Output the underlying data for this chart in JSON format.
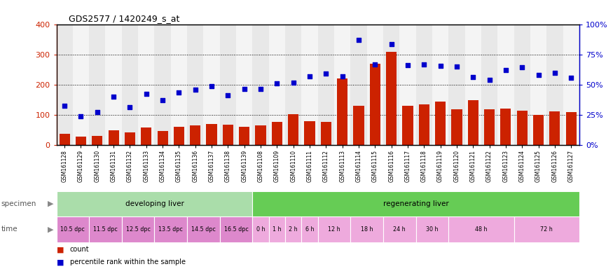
{
  "title": "GDS2577 / 1420249_s_at",
  "samples": [
    "GSM161128",
    "GSM161129",
    "GSM161130",
    "GSM161131",
    "GSM161132",
    "GSM161133",
    "GSM161134",
    "GSM161135",
    "GSM161136",
    "GSM161137",
    "GSM161138",
    "GSM161139",
    "GSM161108",
    "GSM161109",
    "GSM161110",
    "GSM161111",
    "GSM161112",
    "GSM161113",
    "GSM161114",
    "GSM161115",
    "GSM161116",
    "GSM161117",
    "GSM161118",
    "GSM161119",
    "GSM161120",
    "GSM161121",
    "GSM161122",
    "GSM161123",
    "GSM161124",
    "GSM161125",
    "GSM161126",
    "GSM161127"
  ],
  "counts": [
    38,
    28,
    32,
    50,
    42,
    58,
    48,
    62,
    65,
    70,
    68,
    60,
    65,
    77,
    102,
    80,
    78,
    220,
    130,
    270,
    308,
    130,
    135,
    145,
    120,
    148,
    118,
    122,
    115,
    100,
    112,
    110
  ],
  "percentiles_on_left_scale": [
    130,
    95,
    110,
    160,
    125,
    170,
    150,
    175,
    183,
    195,
    165,
    185,
    185,
    205,
    208,
    228,
    237,
    228,
    348,
    268,
    335,
    265,
    268,
    262,
    260,
    225,
    215,
    248,
    258,
    232,
    240,
    222
  ],
  "bar_color": "#cc2200",
  "dot_color": "#0000cc",
  "left_ylim": [
    0,
    400
  ],
  "right_ylim": [
    0,
    400
  ],
  "left_yticks": [
    0,
    100,
    200,
    300,
    400
  ],
  "right_yticks": [
    0,
    100,
    200,
    300,
    400
  ],
  "right_yticklabels": [
    "0%",
    "25%",
    "50%",
    "75%",
    "100%"
  ],
  "dotted_lines": [
    100,
    200,
    300
  ],
  "plot_bg": "#f5f5f5",
  "col_even": "#e8e8e8",
  "col_odd": "#f4f4f4",
  "specimen_groups": [
    {
      "label": "developing liver",
      "start": 0,
      "end": 12,
      "color": "#aaddaa"
    },
    {
      "label": "regenerating liver",
      "start": 12,
      "end": 32,
      "color": "#66cc55"
    }
  ],
  "time_labels": [
    {
      "label": "10.5 dpc",
      "start": 0,
      "end": 2
    },
    {
      "label": "11.5 dpc",
      "start": 2,
      "end": 4
    },
    {
      "label": "12.5 dpc",
      "start": 4,
      "end": 6
    },
    {
      "label": "13.5 dpc",
      "start": 6,
      "end": 8
    },
    {
      "label": "14.5 dpc",
      "start": 8,
      "end": 10
    },
    {
      "label": "16.5 dpc",
      "start": 10,
      "end": 12
    },
    {
      "label": "0 h",
      "start": 12,
      "end": 13
    },
    {
      "label": "1 h",
      "start": 13,
      "end": 14
    },
    {
      "label": "2 h",
      "start": 14,
      "end": 15
    },
    {
      "label": "6 h",
      "start": 15,
      "end": 16
    },
    {
      "label": "12 h",
      "start": 16,
      "end": 18
    },
    {
      "label": "18 h",
      "start": 18,
      "end": 20
    },
    {
      "label": "24 h",
      "start": 20,
      "end": 22
    },
    {
      "label": "30 h",
      "start": 22,
      "end": 24
    },
    {
      "label": "48 h",
      "start": 24,
      "end": 28
    },
    {
      "label": "72 h",
      "start": 28,
      "end": 32
    }
  ],
  "dpc_color": "#dd88cc",
  "hour_color": "#eeaadd",
  "bg_color": "#ffffff"
}
